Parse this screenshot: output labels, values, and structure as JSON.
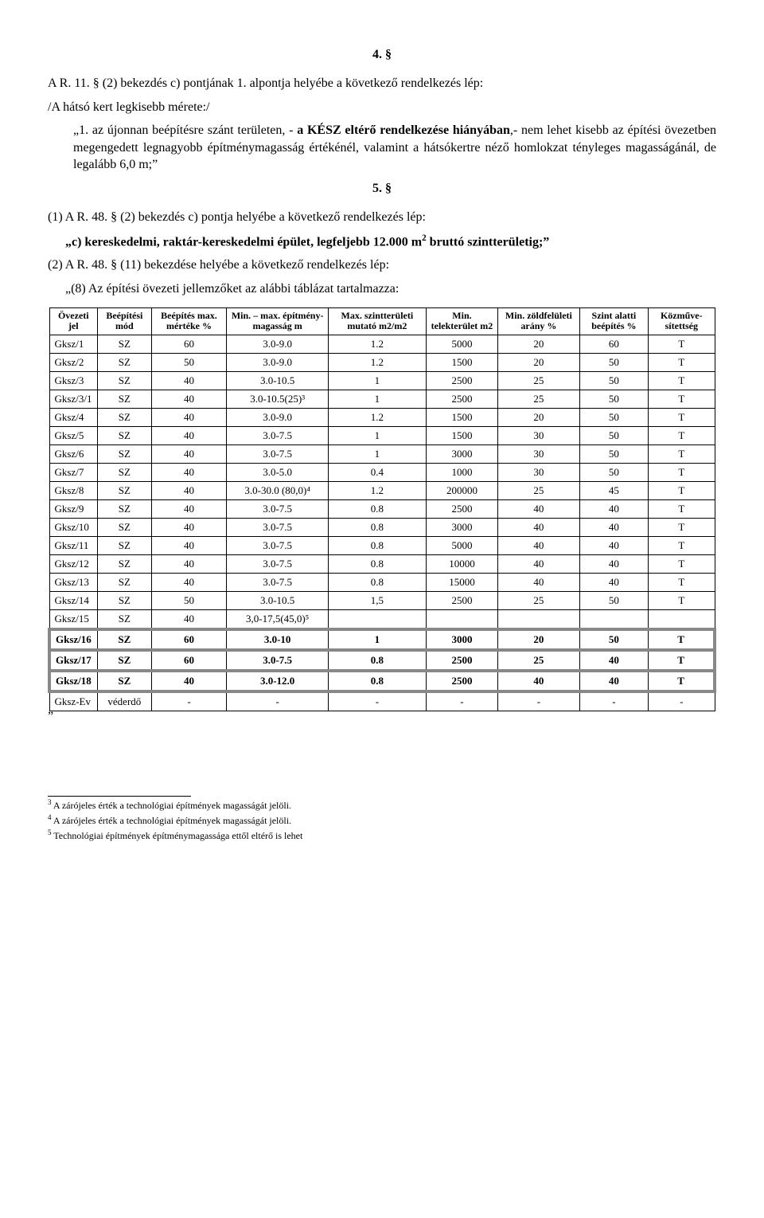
{
  "section4": "4. §",
  "p1": "A R. 11. § (2) bekezdés c) pontjának 1. alpontja helyébe a következő rendelkezés lép:",
  "p2": "/A hátsó kert legkisebb mérete:/",
  "p3_lead": "„1. az újonnan beépítésre szánt területen, - ",
  "p3_bold": "a KÉSZ eltérő rendelkezése hiányában",
  "p3_tail": ",- nem lehet kisebb az építési övezetben megengedett legnagyobb építménymagasság értékénél, valamint a hátsókertre néző homlokzat tényleges magasságánál, de legalább 6,0 m;”",
  "section5": "5. §",
  "li1": "(1)  A R. 48. § (2) bekezdés c) pontja helyébe a következő rendelkezés lép:",
  "q1_a": "„c) kereskedelmi, raktár-kereskedelmi épület, legfeljebb 12.000 m",
  "q1_b": " bruttó szintterületig;”",
  "li2": "(2)  A R. 48. § (11) bekezdése helyébe a következő rendelkezés lép:",
  "q2": "„(8) Az építési övezeti jellemzőket az alábbi táblázat tartalmazza:",
  "headers": [
    "Övezeti jel",
    "Beépítési mód",
    "Beépítés max. mértéke %",
    "Min. – max. építmény- magasság m",
    "Max. szintterületi mutató m2/m2",
    "Min. telekterület m2",
    "Min. zöldfelületi arány %",
    "Szint alatti beépítés %",
    "Közműve- sítettség"
  ],
  "rows": [
    [
      "Gksz/1",
      "SZ",
      "60",
      "3.0-9.0",
      "1.2",
      "5000",
      "20",
      "60",
      "T"
    ],
    [
      "Gksz/2",
      "SZ",
      "50",
      "3.0-9.0",
      "1.2",
      "1500",
      "20",
      "50",
      "T"
    ],
    [
      "Gksz/3",
      "SZ",
      "40",
      "3.0-10.5",
      "1",
      "2500",
      "25",
      "50",
      "T"
    ],
    [
      "Gksz/3/1",
      "SZ",
      "40",
      "3.0-10.5(25)³",
      "1",
      "2500",
      "25",
      "50",
      "T"
    ],
    [
      "Gksz/4",
      "SZ",
      "40",
      "3.0-9.0",
      "1.2",
      "1500",
      "20",
      "50",
      "T"
    ],
    [
      "Gksz/5",
      "SZ",
      "40",
      "3.0-7.5",
      "1",
      "1500",
      "30",
      "50",
      "T"
    ],
    [
      "Gksz/6",
      "SZ",
      "40",
      "3.0-7.5",
      "1",
      "3000",
      "30",
      "50",
      "T"
    ],
    [
      "Gksz/7",
      "SZ",
      "40",
      "3.0-5.0",
      "0.4",
      "1000",
      "30",
      "50",
      "T"
    ],
    [
      "Gksz/8",
      "SZ",
      "40",
      "3.0-30.0 (80,0)⁴",
      "1.2",
      "200000",
      "25",
      "45",
      "T"
    ],
    [
      "Gksz/9",
      "SZ",
      "40",
      "3.0-7.5",
      "0.8",
      "2500",
      "40",
      "40",
      "T"
    ],
    [
      "Gksz/10",
      "SZ",
      "40",
      "3.0-7.5",
      "0.8",
      "3000",
      "40",
      "40",
      "T"
    ],
    [
      "Gksz/11",
      "SZ",
      "40",
      "3.0-7.5",
      "0.8",
      "5000",
      "40",
      "40",
      "T"
    ],
    [
      "Gksz/12",
      "SZ",
      "40",
      "3.0-7.5",
      "0.8",
      "10000",
      "40",
      "40",
      "T"
    ],
    [
      "Gksz/13",
      "SZ",
      "40",
      "3.0-7.5",
      "0.8",
      "15000",
      "40",
      "40",
      "T"
    ],
    [
      "Gksz/14",
      "SZ",
      "50",
      "3.0-10.5",
      "1,5",
      "2500",
      "25",
      "50",
      "T"
    ],
    [
      "Gksz/15",
      "SZ",
      "40",
      "3,0-17,5(45,0)⁵",
      "",
      "",
      "",
      "",
      ""
    ],
    [
      "Gksz/16",
      "SZ",
      "60",
      "3.0-10",
      "1",
      "3000",
      "20",
      "50",
      "T"
    ],
    [
      "Gksz/17",
      "SZ",
      "60",
      "3.0-7.5",
      "0.8",
      "2500",
      "25",
      "40",
      "T"
    ],
    [
      "Gksz/18",
      "SZ",
      "40",
      "3.0-12.0",
      "0.8",
      "2500",
      "40",
      "40",
      "T"
    ],
    [
      "Gksz-Ev",
      "véderdő",
      "-",
      "-",
      "-",
      "-",
      "-",
      "-",
      "-"
    ]
  ],
  "boxed_group_start": 16,
  "boxed_group_end": 16,
  "boxed_singles": [
    17,
    18
  ],
  "bold_rows": [
    16,
    17,
    18
  ],
  "closing_quote": "”",
  "footnotes": [
    {
      "n": "3",
      "t": "A zárójeles érték a technológiai építmények magasságát jelöli."
    },
    {
      "n": "4",
      "t": "A zárójeles érték a technológiai építmények magasságát jelöli."
    },
    {
      "n": "5",
      "t": "Technológiai építmények építménymagassága ettől eltérő is lehet"
    }
  ]
}
